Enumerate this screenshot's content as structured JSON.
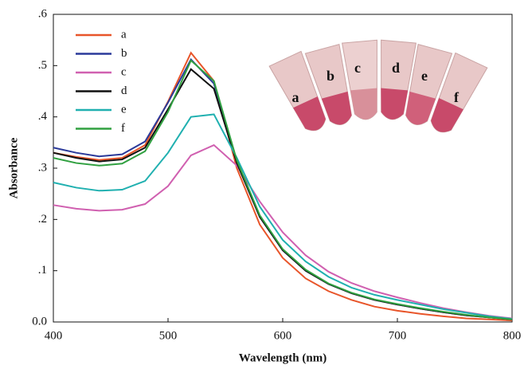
{
  "chart_data": {
    "type": "line",
    "xlabel": "Wavelength (nm)",
    "ylabel": "Absorbance",
    "x": [
      400,
      420,
      440,
      460,
      480,
      500,
      520,
      540,
      560,
      580,
      600,
      620,
      640,
      660,
      680,
      700,
      720,
      740,
      760,
      780,
      800
    ],
    "series": [
      {
        "name": "a",
        "color": "#e8552a",
        "values": [
          0.33,
          0.322,
          0.316,
          0.32,
          0.345,
          0.43,
          0.525,
          0.47,
          0.3,
          0.19,
          0.125,
          0.085,
          0.06,
          0.043,
          0.03,
          0.022,
          0.016,
          0.011,
          0.007,
          0.005,
          0.003
        ]
      },
      {
        "name": "b",
        "color": "#2b3a9a",
        "values": [
          0.34,
          0.33,
          0.323,
          0.327,
          0.352,
          0.428,
          0.512,
          0.465,
          0.31,
          0.205,
          0.14,
          0.1,
          0.074,
          0.056,
          0.043,
          0.034,
          0.026,
          0.019,
          0.013,
          0.009,
          0.005
        ]
      },
      {
        "name": "c",
        "color": "#d060b0",
        "values": [
          0.228,
          0.221,
          0.217,
          0.219,
          0.23,
          0.265,
          0.325,
          0.345,
          0.305,
          0.235,
          0.175,
          0.13,
          0.098,
          0.076,
          0.06,
          0.048,
          0.037,
          0.027,
          0.019,
          0.012,
          0.007
        ]
      },
      {
        "name": "d",
        "color": "#111111",
        "values": [
          0.33,
          0.32,
          0.313,
          0.317,
          0.34,
          0.415,
          0.493,
          0.455,
          0.31,
          0.205,
          0.14,
          0.1,
          0.074,
          0.056,
          0.043,
          0.034,
          0.026,
          0.019,
          0.013,
          0.009,
          0.005
        ]
      },
      {
        "name": "e",
        "color": "#20b0b0",
        "values": [
          0.272,
          0.262,
          0.256,
          0.258,
          0.275,
          0.33,
          0.4,
          0.405,
          0.32,
          0.225,
          0.16,
          0.118,
          0.088,
          0.067,
          0.053,
          0.043,
          0.034,
          0.025,
          0.018,
          0.011,
          0.006
        ]
      },
      {
        "name": "f",
        "color": "#30a040",
        "values": [
          0.32,
          0.31,
          0.305,
          0.309,
          0.333,
          0.41,
          0.51,
          0.47,
          0.315,
          0.208,
          0.142,
          0.102,
          0.075,
          0.057,
          0.044,
          0.035,
          0.027,
          0.02,
          0.014,
          0.009,
          0.005
        ]
      }
    ],
    "xlim": [
      400,
      800
    ],
    "xticks": [
      400,
      500,
      600,
      700,
      800
    ],
    "ylim": [
      0,
      0.6
    ],
    "yticks": [
      {
        "value": 0,
        "label": "0.0"
      },
      {
        "value": 0.1,
        "label": ".1"
      },
      {
        "value": 0.2,
        "label": ".2"
      },
      {
        "value": 0.3,
        "label": ".3"
      },
      {
        "value": 0.4,
        "label": ".4"
      },
      {
        "value": 0.5,
        "label": ".5"
      },
      {
        "value": 0.6,
        "label": ".6"
      }
    ],
    "legend": "upper left",
    "photo_labels": [
      "a",
      "b",
      "c",
      "d",
      "e",
      "f"
    ]
  }
}
